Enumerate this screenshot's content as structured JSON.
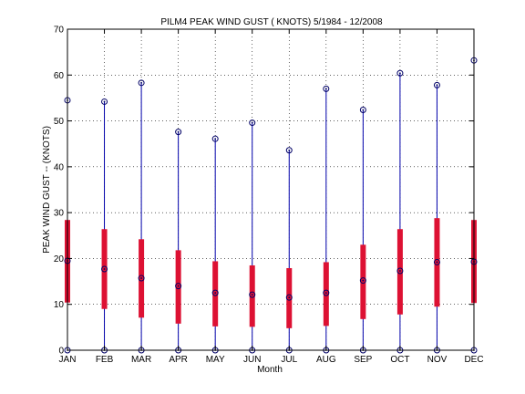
{
  "chart_data": {
    "type": "box",
    "title": "PILM4  PEAK WIND GUST ( KNOTS) 5/1984 - 12/2008",
    "xlabel": "Month",
    "ylabel": "PEAK WIND GUST  -- (KNOTS)",
    "ylim": [
      0,
      70
    ],
    "yticks": [
      0,
      10,
      20,
      30,
      40,
      50,
      60,
      70
    ],
    "grid": true,
    "categories": [
      "JAN",
      "FEB",
      "MAR",
      "APR",
      "MAY",
      "JUN",
      "JUL",
      "AUG",
      "SEP",
      "OCT",
      "NOV",
      "DEC"
    ],
    "series": [
      {
        "min": [
          0,
          0,
          0,
          0,
          0,
          0,
          0,
          0,
          0,
          0,
          0,
          0
        ],
        "max": [
          54.5,
          54.2,
          58.3,
          47.6,
          46.1,
          49.6,
          43.6,
          57.0,
          52.4,
          60.4,
          57.8,
          63.2
        ],
        "mean": [
          19.5,
          17.7,
          15.7,
          14.0,
          12.5,
          12.1,
          11.5,
          12.5,
          15.2,
          17.3,
          19.2,
          19.3
        ],
        "lower": [
          10.4,
          9.0,
          7.1,
          5.8,
          5.2,
          5.1,
          4.8,
          5.3,
          6.8,
          7.8,
          9.5,
          10.3
        ],
        "upper": [
          28.4,
          26.4,
          24.2,
          21.8,
          19.4,
          18.5,
          17.9,
          19.2,
          23.0,
          26.4,
          28.8,
          28.4
        ]
      }
    ],
    "colors": {
      "whisker": "#0000aa",
      "box": "#dd1133",
      "marker": "#000066",
      "axis": "#000000",
      "grid": "#000000"
    }
  }
}
